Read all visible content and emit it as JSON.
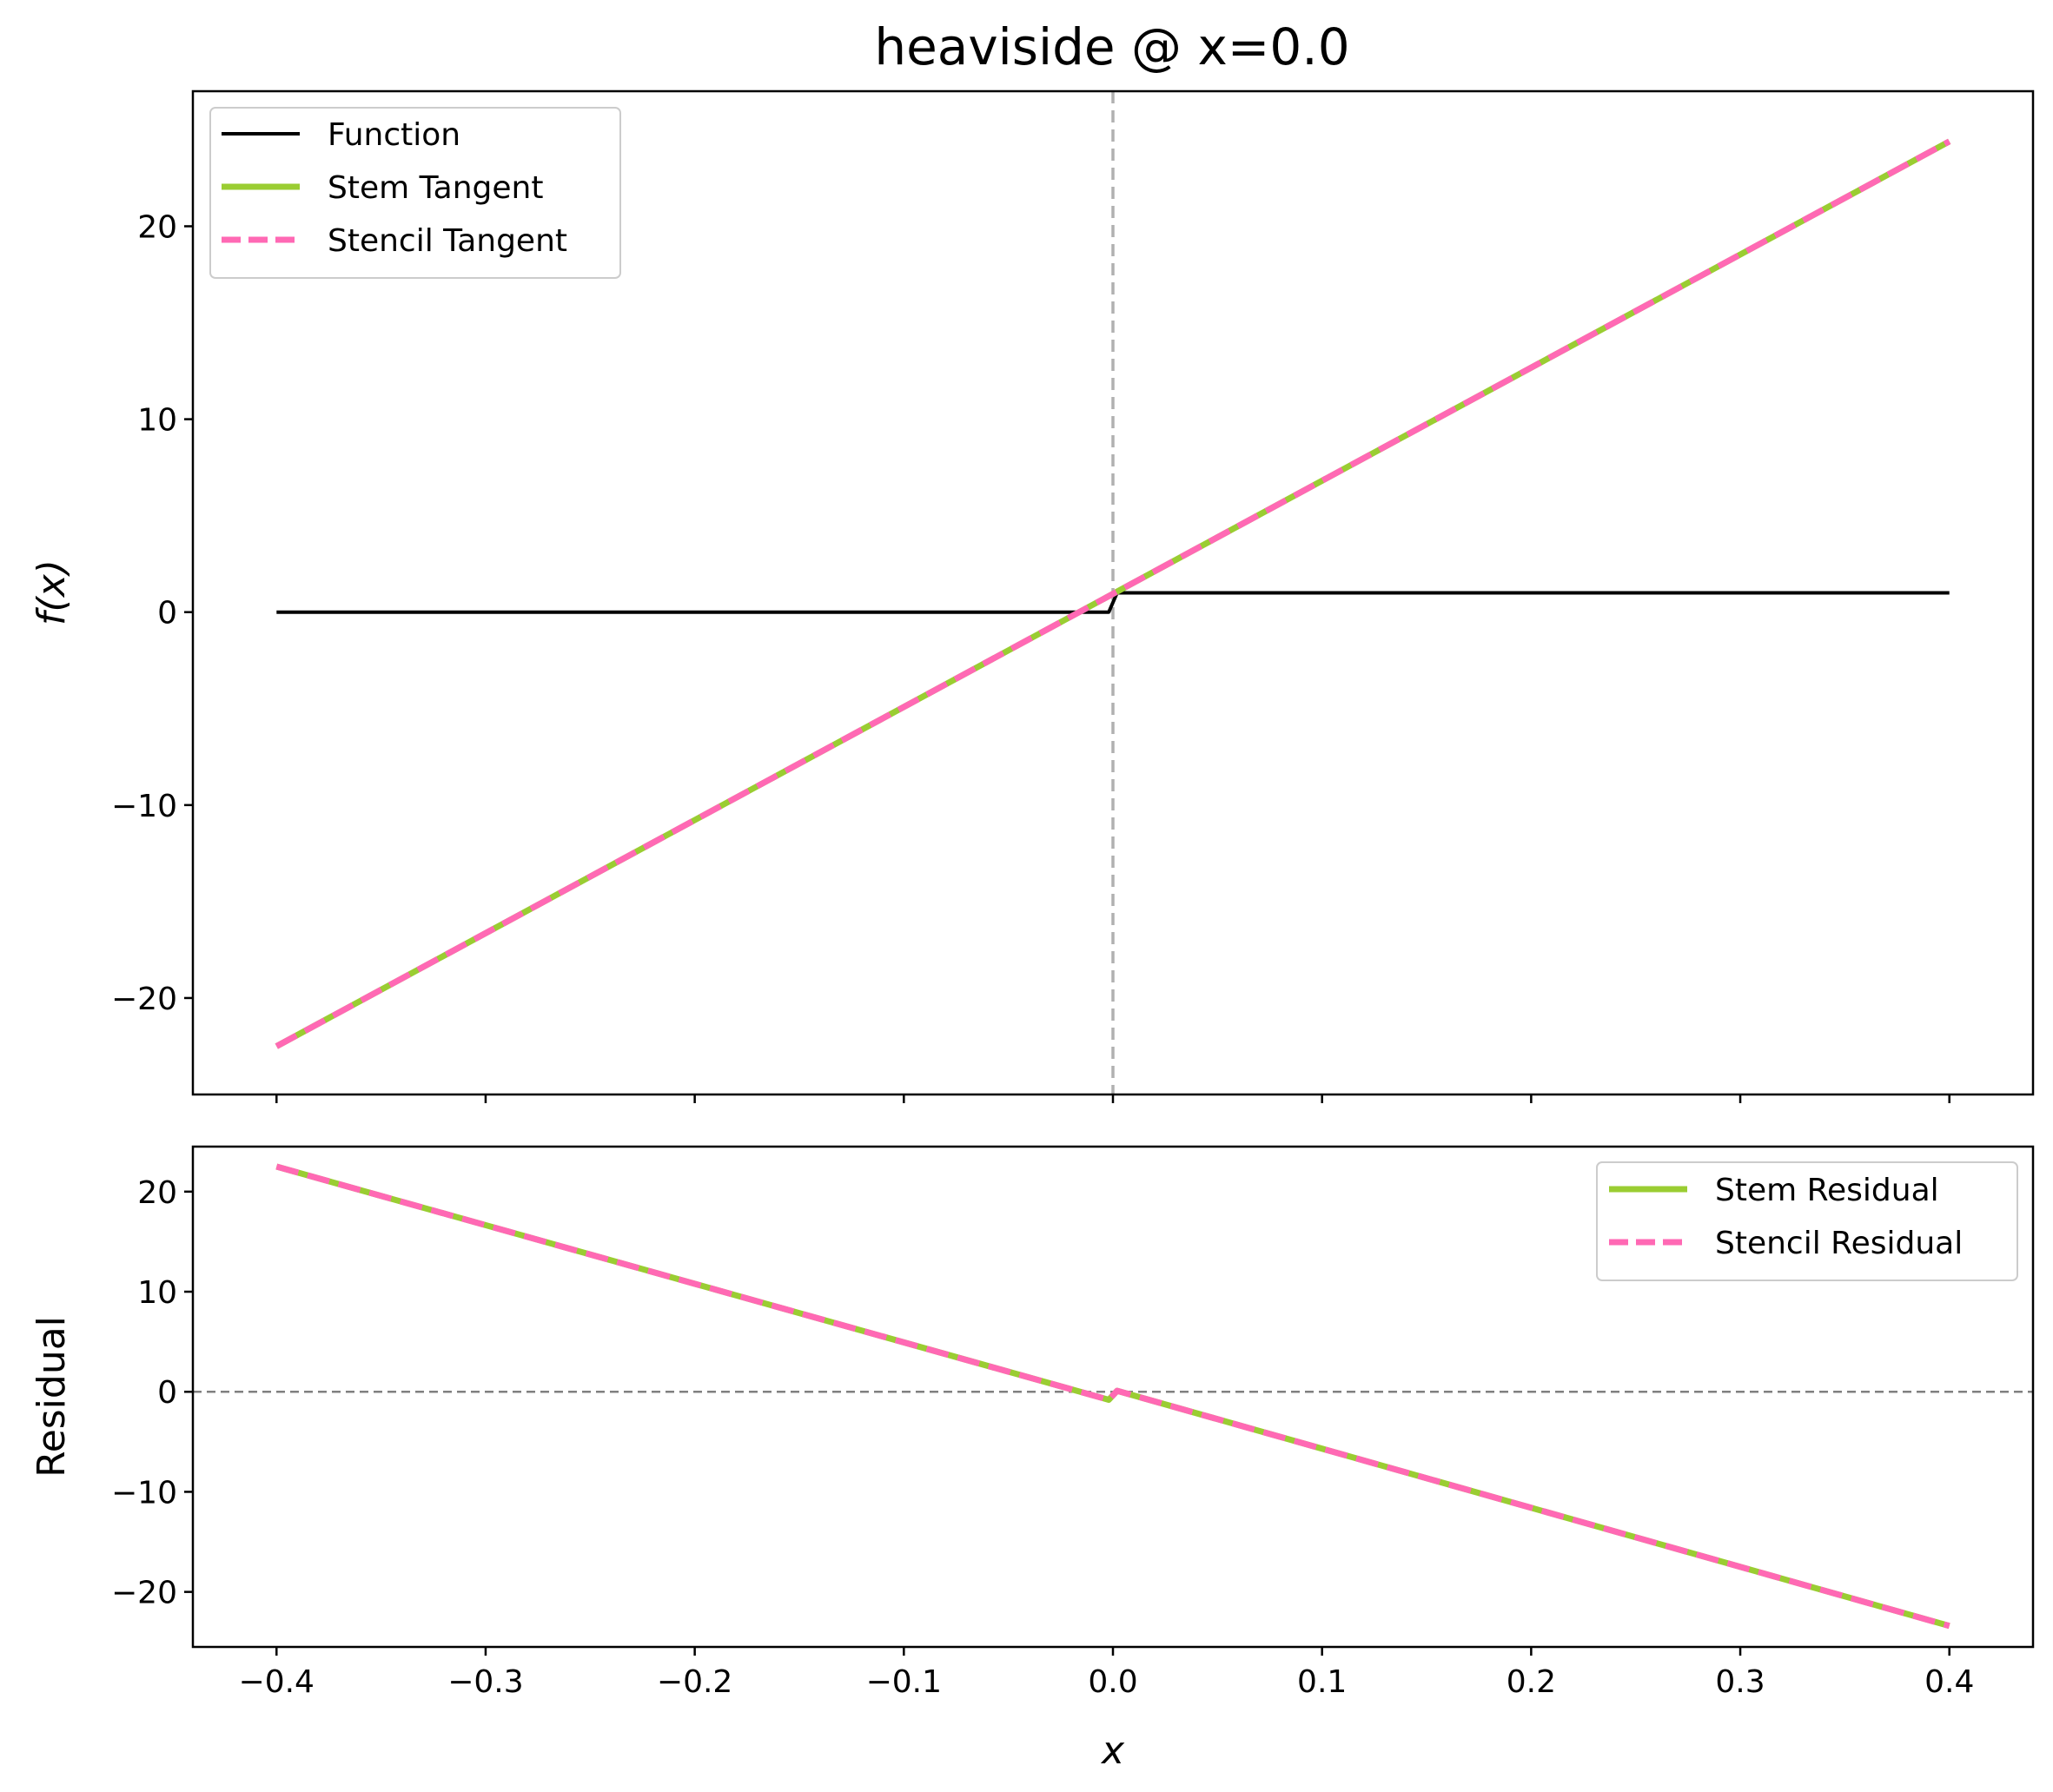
{
  "chart_data": [
    {
      "type": "line",
      "title": "heaviside @ x=0.0",
      "xlabel": "",
      "ylabel": "f(x)",
      "xlim": [
        -0.44,
        0.44
      ],
      "ylim": [
        -25,
        27
      ],
      "yticks": [
        20,
        10,
        0,
        -10,
        -20
      ],
      "ytick_labels": [
        "20",
        "10",
        "0",
        "−10",
        "−20"
      ],
      "xticks": [
        -0.4,
        -0.3,
        -0.2,
        -0.1,
        0.0,
        0.1,
        0.2,
        0.3,
        0.4
      ],
      "xtick_labels": [],
      "vline": {
        "x": 0.0,
        "color": "#b0b0b0",
        "style": "dashed"
      },
      "legend_position": "upper-left",
      "series": [
        {
          "name": "Function",
          "color": "#000000",
          "style": "solid",
          "x": [
            -0.4,
            -0.002,
            0.002,
            0.4
          ],
          "y": [
            0,
            0,
            1,
            1
          ]
        },
        {
          "name": "Stem Tangent",
          "color": "#9acd32",
          "style": "solid",
          "x": [
            -0.4,
            0.4
          ],
          "y": [
            -22.5,
            24.4
          ]
        },
        {
          "name": "Stencil Tangent",
          "color": "#ff69b4",
          "style": "dashed",
          "x": [
            -0.4,
            0.4
          ],
          "y": [
            -22.5,
            24.4
          ]
        }
      ]
    },
    {
      "type": "line",
      "title": "",
      "xlabel": "x",
      "ylabel": "Residual",
      "xlim": [
        -0.44,
        0.44
      ],
      "ylim": [
        -25.5,
        24.5
      ],
      "yticks": [
        20,
        10,
        0,
        -10,
        -20
      ],
      "ytick_labels": [
        "20",
        "10",
        "0",
        "−10",
        "−20"
      ],
      "xticks": [
        -0.4,
        -0.3,
        -0.2,
        -0.1,
        0.0,
        0.1,
        0.2,
        0.3,
        0.4
      ],
      "xtick_labels": [
        "−0.4",
        "−0.3",
        "−0.2",
        "−0.1",
        "0.0",
        "0.1",
        "0.2",
        "0.3",
        "0.4"
      ],
      "hline": {
        "y": 0,
        "color": "#808080",
        "style": "dashed"
      },
      "legend_position": "upper-right",
      "series": [
        {
          "name": "Stem Residual",
          "color": "#9acd32",
          "style": "solid",
          "x": [
            -0.4,
            -0.002,
            0.002,
            0.4
          ],
          "y": [
            22.5,
            -0.8,
            0.1,
            -23.4
          ]
        },
        {
          "name": "Stencil Residual",
          "color": "#ff69b4",
          "style": "dashed",
          "x": [
            -0.4,
            -0.002,
            0.002,
            0.4
          ],
          "y": [
            22.5,
            -0.8,
            0.1,
            -23.4
          ]
        }
      ]
    }
  ]
}
